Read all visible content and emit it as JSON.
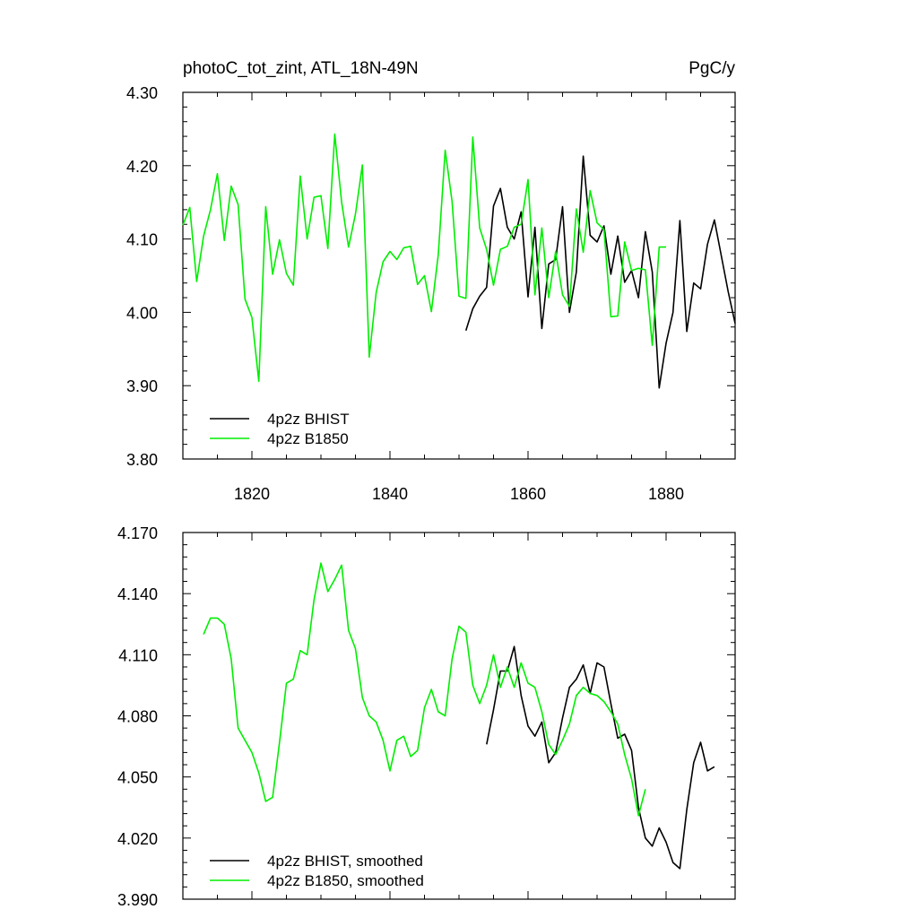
{
  "page": {
    "title_left": "photoC_tot_zint, ATL_18N-49N",
    "title_right": "PgC/y"
  },
  "colors": {
    "bhist": "#000000",
    "b1850": "#00ee00"
  },
  "chart_data": [
    {
      "type": "line",
      "xlim": [
        1810,
        1890
      ],
      "ylim": [
        3.8,
        4.3
      ],
      "x_ticks": [
        1820,
        1840,
        1860,
        1880
      ],
      "y_ticks": [
        3.8,
        3.9,
        4.0,
        4.1,
        4.2,
        4.3
      ],
      "y_tick_labels": [
        "3.80",
        "3.90",
        "4.00",
        "4.10",
        "4.20",
        "4.30"
      ],
      "x_tick_labels": [
        "1820",
        "1840",
        "1860",
        "1880"
      ],
      "legend_position": "bottom-left",
      "grid": false,
      "series": [
        {
          "name": "4p2z BHIST",
          "color": "#000000",
          "x": [
            1851,
            1852,
            1853,
            1854,
            1855,
            1856,
            1857,
            1858,
            1859,
            1860,
            1861,
            1862,
            1863,
            1864,
            1865,
            1866,
            1867,
            1868,
            1869,
            1870,
            1871,
            1872,
            1873,
            1874,
            1875,
            1876,
            1877,
            1878,
            1879,
            1880,
            1881,
            1882,
            1883,
            1884,
            1885,
            1886,
            1887,
            1888,
            1889,
            1890
          ],
          "y": [
            3.975,
            4.005,
            4.022,
            4.034,
            4.145,
            4.169,
            4.116,
            4.1,
            4.137,
            4.021,
            4.116,
            3.978,
            4.066,
            4.072,
            4.144,
            4.0,
            4.055,
            4.213,
            4.105,
            4.096,
            4.118,
            4.052,
            4.104,
            4.041,
            4.057,
            4.02,
            4.11,
            4.055,
            3.897,
            3.958,
            4.0,
            4.125,
            3.974,
            4.04,
            4.032,
            4.093,
            4.126,
            4.077,
            4.028,
            3.985
          ]
        },
        {
          "name": "4p2z B1850",
          "color": "#00ee00",
          "x": [
            1810,
            1811,
            1812,
            1813,
            1814,
            1815,
            1816,
            1817,
            1818,
            1819,
            1820,
            1821,
            1822,
            1823,
            1824,
            1825,
            1826,
            1827,
            1828,
            1829,
            1830,
            1831,
            1832,
            1833,
            1834,
            1835,
            1836,
            1837,
            1838,
            1839,
            1840,
            1841,
            1842,
            1843,
            1844,
            1845,
            1846,
            1847,
            1848,
            1849,
            1850,
            1851,
            1852,
            1853,
            1854,
            1855,
            1856,
            1857,
            1858,
            1859,
            1860,
            1861,
            1862,
            1863,
            1864,
            1865,
            1866,
            1867,
            1868,
            1869,
            1870,
            1871,
            1872,
            1873,
            1874,
            1875,
            1876,
            1877,
            1878,
            1879,
            1880
          ],
          "y": [
            4.119,
            4.143,
            4.042,
            4.104,
            4.14,
            4.189,
            4.098,
            4.172,
            4.147,
            4.018,
            3.993,
            3.906,
            4.144,
            4.052,
            4.099,
            4.053,
            4.037,
            4.186,
            4.1,
            4.157,
            4.159,
            4.087,
            4.243,
            4.15,
            4.089,
            4.134,
            4.201,
            3.939,
            4.027,
            4.069,
            4.083,
            4.072,
            4.088,
            4.09,
            4.038,
            4.05,
            4.001,
            4.079,
            4.221,
            4.151,
            4.022,
            4.019,
            4.239,
            4.115,
            4.086,
            4.037,
            4.086,
            4.09,
            4.116,
            4.12,
            4.181,
            4.024,
            4.115,
            4.02,
            4.083,
            4.024,
            4.008,
            4.141,
            4.082,
            4.166,
            4.122,
            4.113,
            3.994,
            3.995,
            4.096,
            4.057,
            4.06,
            4.058,
            3.955,
            4.089,
            4.089
          ]
        }
      ]
    },
    {
      "type": "line",
      "xlim": [
        1810,
        1890
      ],
      "ylim": [
        3.99,
        4.17
      ],
      "x_ticks": [
        1820,
        1840,
        1860,
        1880
      ],
      "y_ticks": [
        3.99,
        4.02,
        4.05,
        4.08,
        4.11,
        4.14,
        4.17
      ],
      "y_tick_labels": [
        "3.990",
        "4.020",
        "4.050",
        "4.080",
        "4.110",
        "4.140",
        "4.170"
      ],
      "legend_position": "bottom-left",
      "grid": false,
      "series": [
        {
          "name": "4p2z BHIST, smoothed",
          "color": "#000000",
          "x": [
            1854,
            1855,
            1856,
            1857,
            1858,
            1859,
            1860,
            1861,
            1862,
            1863,
            1864,
            1865,
            1866,
            1867,
            1868,
            1869,
            1870,
            1871,
            1872,
            1873,
            1874,
            1875,
            1876,
            1877,
            1878,
            1879,
            1880,
            1881,
            1882,
            1883,
            1884,
            1885,
            1886,
            1887
          ],
          "y": [
            4.066,
            4.083,
            4.102,
            4.102,
            4.114,
            4.09,
            4.075,
            4.07,
            4.077,
            4.057,
            4.062,
            4.079,
            4.094,
            4.098,
            4.105,
            4.091,
            4.106,
            4.104,
            4.086,
            4.069,
            4.071,
            4.063,
            4.035,
            4.02,
            4.016,
            4.025,
            4.018,
            4.008,
            4.005,
            4.034,
            4.057,
            4.067,
            4.053,
            4.055
          ]
        },
        {
          "name": "4p2z B1850, smoothed",
          "color": "#00ee00",
          "x": [
            1813,
            1814,
            1815,
            1816,
            1817,
            1818,
            1819,
            1820,
            1821,
            1822,
            1823,
            1824,
            1825,
            1826,
            1827,
            1828,
            1829,
            1830,
            1831,
            1832,
            1833,
            1834,
            1835,
            1836,
            1837,
            1838,
            1839,
            1840,
            1841,
            1842,
            1843,
            1844,
            1845,
            1846,
            1847,
            1848,
            1849,
            1850,
            1851,
            1852,
            1853,
            1854,
            1855,
            1856,
            1857,
            1858,
            1859,
            1860,
            1861,
            1862,
            1863,
            1864,
            1865,
            1866,
            1867,
            1868,
            1869,
            1870,
            1871,
            1872,
            1873,
            1874,
            1875,
            1876,
            1877
          ],
          "y": [
            4.12,
            4.128,
            4.128,
            4.125,
            4.108,
            4.074,
            4.068,
            4.062,
            4.052,
            4.038,
            4.04,
            4.067,
            4.096,
            4.098,
            4.112,
            4.11,
            4.137,
            4.155,
            4.141,
            4.147,
            4.154,
            4.122,
            4.113,
            4.089,
            4.08,
            4.077,
            4.068,
            4.053,
            4.068,
            4.07,
            4.06,
            4.063,
            4.084,
            4.093,
            4.082,
            4.08,
            4.108,
            4.124,
            4.121,
            4.095,
            4.086,
            4.095,
            4.11,
            4.094,
            4.104,
            4.094,
            4.106,
            4.096,
            4.094,
            4.082,
            4.066,
            4.061,
            4.068,
            4.076,
            4.09,
            4.094,
            4.091,
            4.09,
            4.087,
            4.082,
            4.076,
            4.061,
            4.049,
            4.031,
            4.044
          ]
        }
      ]
    }
  ]
}
